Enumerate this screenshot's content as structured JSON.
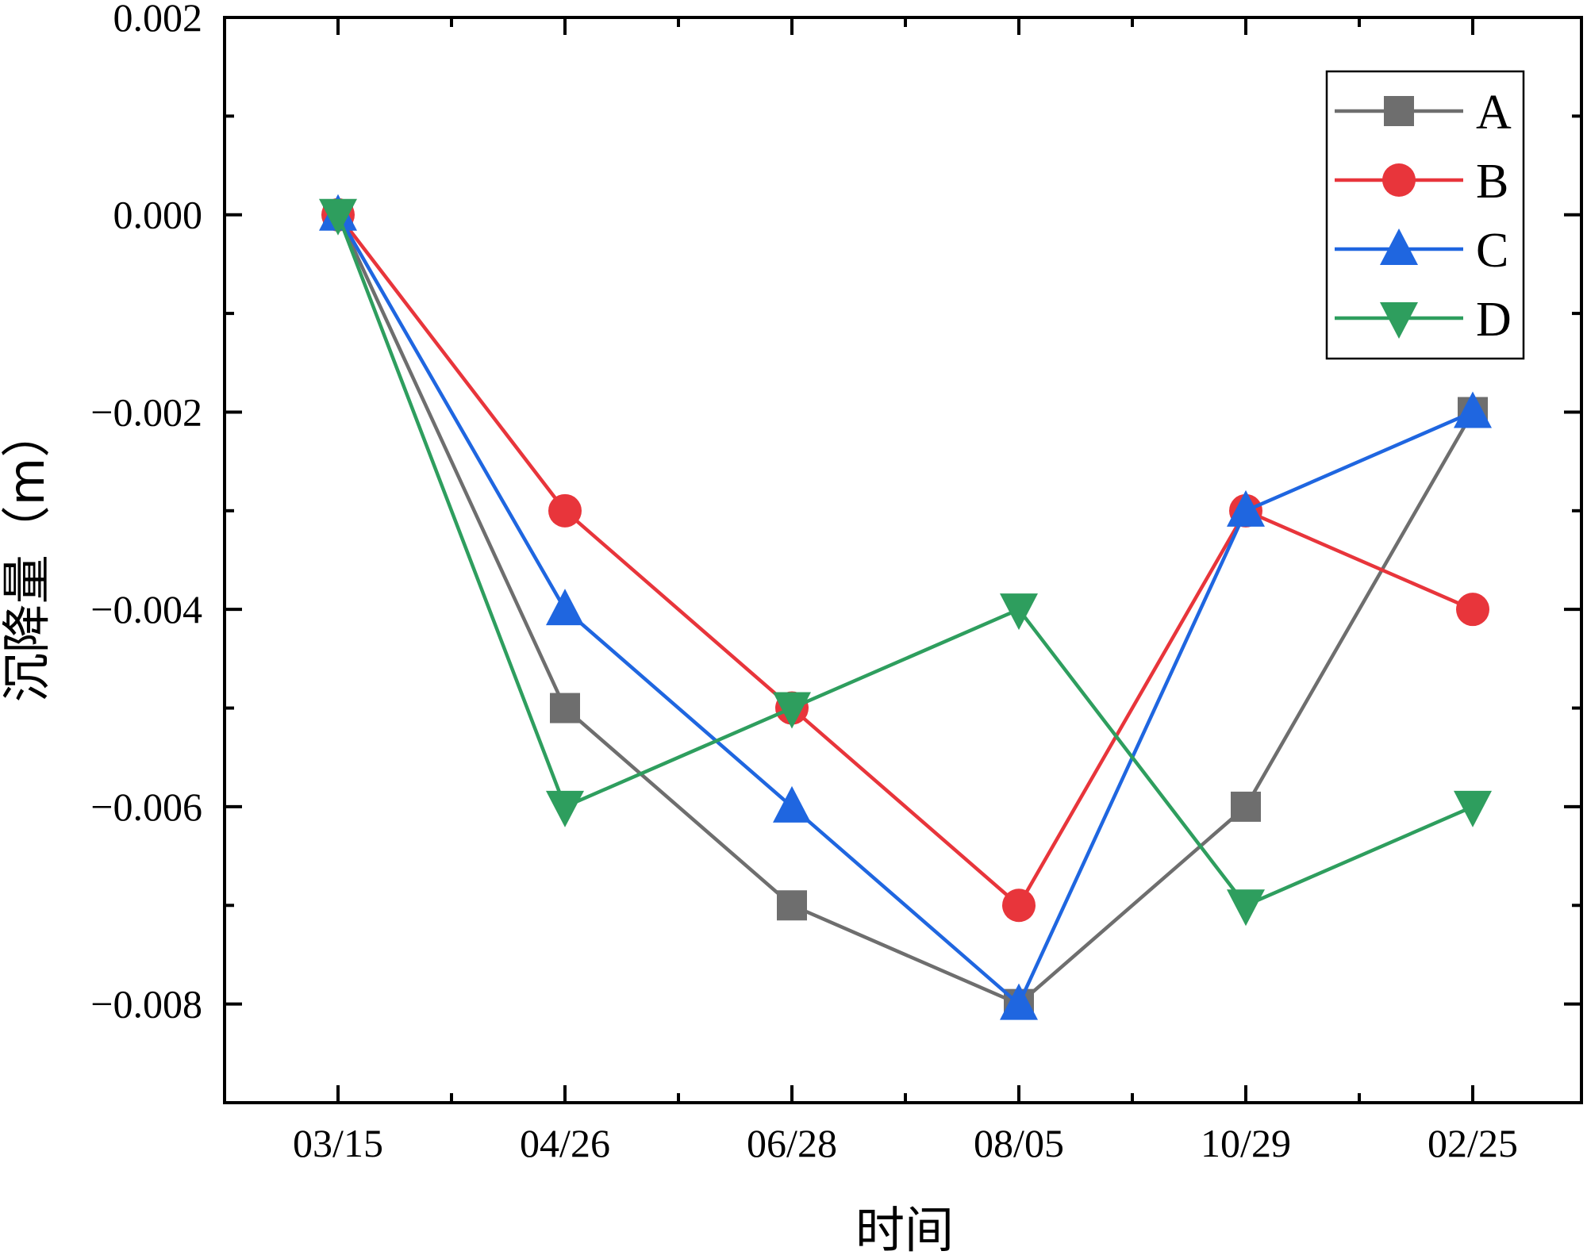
{
  "chart_data": {
    "type": "line",
    "title": "",
    "xlabel": "时间",
    "ylabel": "沉降量（m）",
    "categories": [
      "03/15",
      "04/26",
      "06/28",
      "08/05",
      "10/29",
      "02/25"
    ],
    "ylim": [
      -0.009,
      0.002
    ],
    "yticks": [
      0.002,
      0.0,
      -0.002,
      -0.004,
      -0.006,
      -0.008
    ],
    "ytick_labels": [
      "0.002",
      "0.000",
      "−0.002",
      "−0.004",
      "−0.006",
      "−0.008"
    ],
    "legend_position": "top-right",
    "series": [
      {
        "name": "A",
        "color": "#6e6e6e",
        "marker": "square",
        "values": [
          0.0,
          -0.005,
          -0.007,
          -0.008,
          -0.006,
          -0.002
        ]
      },
      {
        "name": "B",
        "color": "#e8353b",
        "marker": "circle",
        "values": [
          0.0,
          -0.003,
          -0.005,
          -0.007,
          -0.003,
          -0.004
        ]
      },
      {
        "name": "C",
        "color": "#1f66e0",
        "marker": "triangle-up",
        "values": [
          0.0,
          -0.004,
          -0.006,
          -0.008,
          -0.003,
          -0.002
        ]
      },
      {
        "name": "D",
        "color": "#2e9e5e",
        "marker": "triangle-down",
        "values": [
          0.0,
          -0.006,
          -0.005,
          -0.004,
          -0.007,
          -0.006
        ]
      }
    ]
  }
}
